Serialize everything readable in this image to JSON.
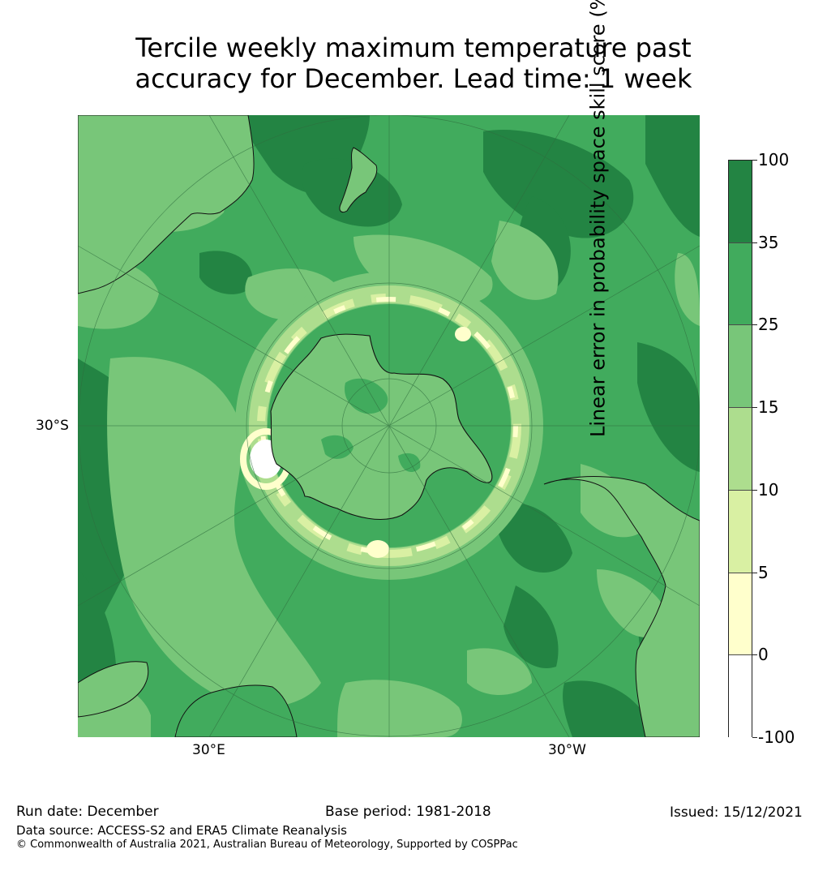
{
  "title": {
    "line1": "Tercile weekly maximum temperature past",
    "line2": "accuracy for December. Lead time: 1 week"
  },
  "map": {
    "projection": "South Polar Stereographic",
    "lat_label": "30°S",
    "lon_labels": {
      "east": "30°E",
      "west": "30°W"
    }
  },
  "colorbar": {
    "label": "Linear error in probability space skill score (%)",
    "ticks": [
      "100",
      "35",
      "25",
      "15",
      "10",
      "5",
      "0",
      "-100"
    ],
    "bands": [
      {
        "range": "35 to 100",
        "color": "#238443"
      },
      {
        "range": "25 to 35",
        "color": "#41ab5d"
      },
      {
        "range": "15 to 25",
        "color": "#78c679"
      },
      {
        "range": "10 to 15",
        "color": "#addd8e"
      },
      {
        "range": "5 to 10",
        "color": "#d9f0a3"
      },
      {
        "range": "0 to 5",
        "color": "#ffffcc"
      },
      {
        "range": "-100 to 0",
        "color": "#ffffff"
      }
    ]
  },
  "footer": {
    "run_date": "Run date: December",
    "base_period": "Base period: 1981-2018",
    "issued": "Issued: 15/12/2021",
    "data_source": "Data source: ACCESS-S2 and ERA5 Climate Reanalysis",
    "copyright": "© Commonwealth of Australia 2021, Australian Bureau of Meteorology, Supported by COSPPac"
  }
}
